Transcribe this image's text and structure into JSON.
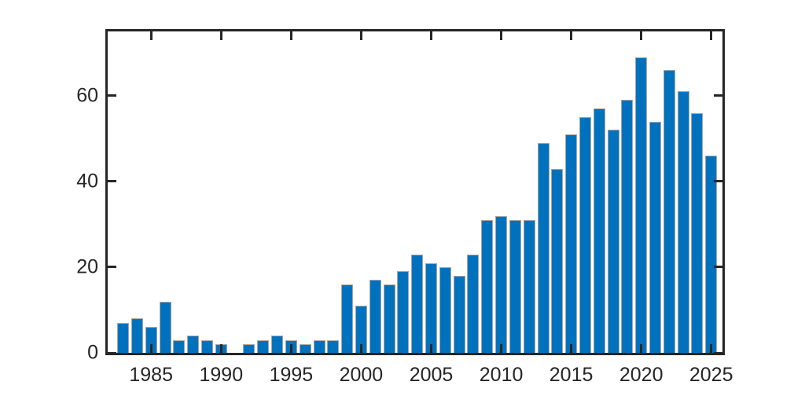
{
  "figure": {
    "background_color": "#ffffff",
    "axis_color": "#262626",
    "tick_label_color": "#262626"
  },
  "chart_data": {
    "type": "bar",
    "title": "",
    "xlabel": "",
    "ylabel": "",
    "categories": [
      1983,
      1984,
      1985,
      1986,
      1987,
      1988,
      1989,
      1990,
      1991,
      1992,
      1993,
      1994,
      1995,
      1996,
      1997,
      1998,
      1999,
      2000,
      2001,
      2002,
      2003,
      2004,
      2005,
      2006,
      2007,
      2008,
      2009,
      2010,
      2011,
      2012,
      2013,
      2014,
      2015,
      2016,
      2017,
      2018,
      2019,
      2020,
      2021,
      2022,
      2023,
      2024,
      2025
    ],
    "values": [
      7,
      8,
      6,
      12,
      3,
      4,
      3,
      2,
      0,
      2,
      3,
      4,
      3,
      2,
      3,
      3,
      16,
      11,
      17,
      16,
      19,
      23,
      21,
      20,
      18,
      23,
      31,
      32,
      31,
      31,
      49,
      43,
      51,
      55,
      57,
      52,
      59,
      69,
      54,
      66,
      61,
      56,
      46
    ],
    "xtick_labels": [
      "1985",
      "1990",
      "1995",
      "2000",
      "2005",
      "2010",
      "2015",
      "2020",
      "2025"
    ],
    "xticks": [
      1985,
      1990,
      1995,
      2000,
      2005,
      2010,
      2015,
      2020,
      2025
    ],
    "ytick_labels": [
      "0",
      "20",
      "40",
      "60"
    ],
    "yticks": [
      0,
      20,
      40,
      60
    ],
    "xlim": [
      1981.9,
      2025.8
    ],
    "ylim": [
      0,
      75
    ],
    "bar_color": "#0072BD",
    "bar_edge_color": "#a6a6a6",
    "bar_width_ratio": 0.84,
    "grid": false,
    "legend_position": "none",
    "box": true,
    "tick_direction": "in"
  }
}
